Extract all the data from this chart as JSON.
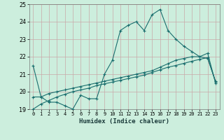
{
  "title": "",
  "xlabel": "Humidex (Indice chaleur)",
  "bg_color": "#cceedd",
  "grid_color": "#c8a8a8",
  "line_color": "#1a6e6e",
  "xlim": [
    -0.5,
    23.5
  ],
  "ylim": [
    19,
    25
  ],
  "xticks": [
    0,
    1,
    2,
    3,
    4,
    5,
    6,
    7,
    8,
    9,
    10,
    11,
    12,
    13,
    14,
    15,
    16,
    17,
    18,
    19,
    20,
    21,
    22,
    23
  ],
  "yticks": [
    19,
    20,
    21,
    22,
    23,
    24,
    25
  ],
  "line1_x": [
    0,
    1,
    2,
    3,
    4,
    5,
    6,
    7,
    8,
    9,
    10,
    11,
    12,
    13,
    14,
    15,
    16,
    17,
    18,
    19,
    20,
    21,
    22,
    23
  ],
  "line1_y": [
    21.5,
    19.7,
    19.4,
    19.4,
    19.2,
    19.0,
    19.8,
    19.6,
    19.6,
    21.0,
    21.8,
    23.5,
    23.8,
    24.0,
    23.5,
    24.4,
    24.7,
    23.5,
    23.0,
    22.6,
    22.3,
    22.0,
    21.9,
    20.6
  ],
  "line2_x": [
    0,
    1,
    2,
    3,
    4,
    5,
    6,
    7,
    8,
    9,
    10,
    11,
    12,
    13,
    14,
    15,
    16,
    17,
    18,
    19,
    20,
    21,
    22,
    23
  ],
  "line2_y": [
    19.7,
    19.7,
    19.9,
    20.0,
    20.1,
    20.2,
    20.3,
    20.4,
    20.5,
    20.6,
    20.7,
    20.8,
    20.9,
    21.0,
    21.1,
    21.2,
    21.4,
    21.6,
    21.8,
    21.9,
    22.0,
    22.0,
    22.2,
    20.5
  ],
  "line3_x": [
    0,
    1,
    2,
    3,
    4,
    5,
    6,
    7,
    8,
    9,
    10,
    11,
    12,
    13,
    14,
    15,
    16,
    17,
    18,
    19,
    20,
    21,
    22,
    23
  ],
  "line3_y": [
    19.0,
    19.3,
    19.5,
    19.7,
    19.85,
    20.0,
    20.1,
    20.2,
    20.35,
    20.45,
    20.55,
    20.65,
    20.75,
    20.85,
    20.95,
    21.1,
    21.25,
    21.4,
    21.5,
    21.62,
    21.74,
    21.85,
    21.95,
    20.55
  ]
}
